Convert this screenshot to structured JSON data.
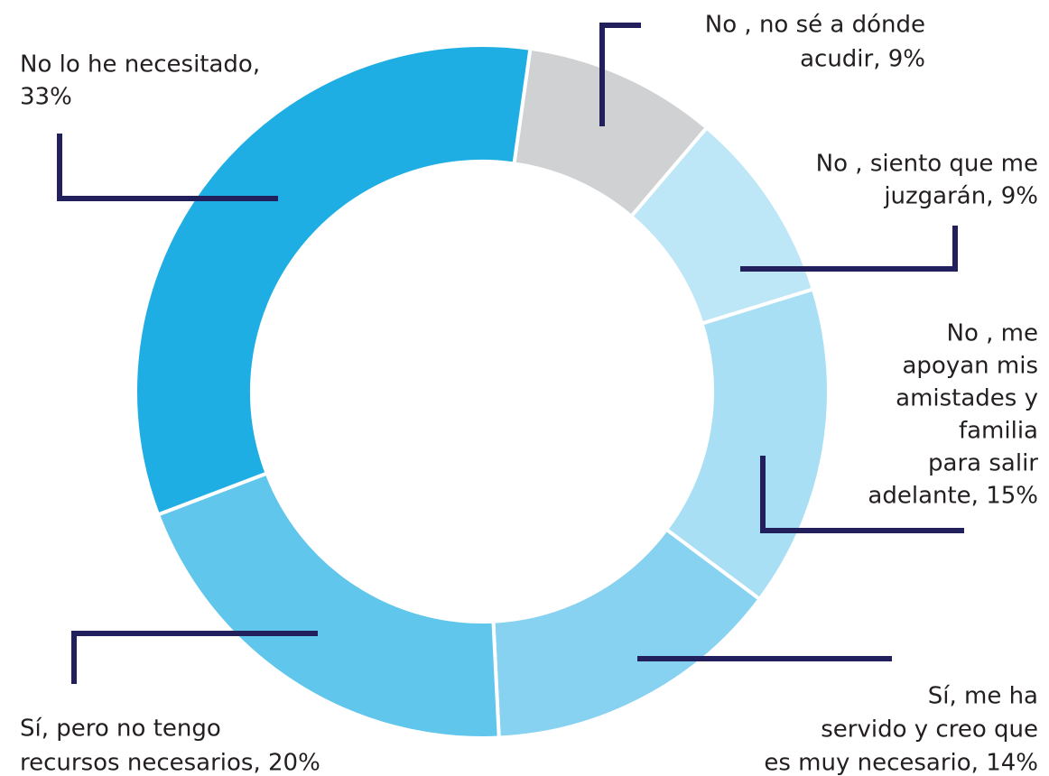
{
  "chart_data": {
    "type": "donut",
    "labels": [
      [
        "No , no sé a dónde",
        "acudir, 9%"
      ],
      [
        "No , siento que me",
        "juzgarán, 9%"
      ],
      [
        "No , me",
        "apoyan mis",
        "amistades y",
        "familia",
        "para salir",
        "adelante, 15%"
      ],
      [
        "Sí, me ha",
        "servido y creo que",
        "es muy necesario, 14%"
      ],
      [
        "Sí, pero no tengo",
        "recursos necesarios, 20%"
      ],
      [
        "No lo he necesitado,",
        "33%"
      ]
    ],
    "values": [
      9,
      9,
      15,
      14,
      20,
      33
    ],
    "colors": [
      "#d0d1d3",
      "#bde6f6",
      "#a9dff5",
      "#86d2f0",
      "#60c6ec",
      "#1faee3"
    ]
  }
}
